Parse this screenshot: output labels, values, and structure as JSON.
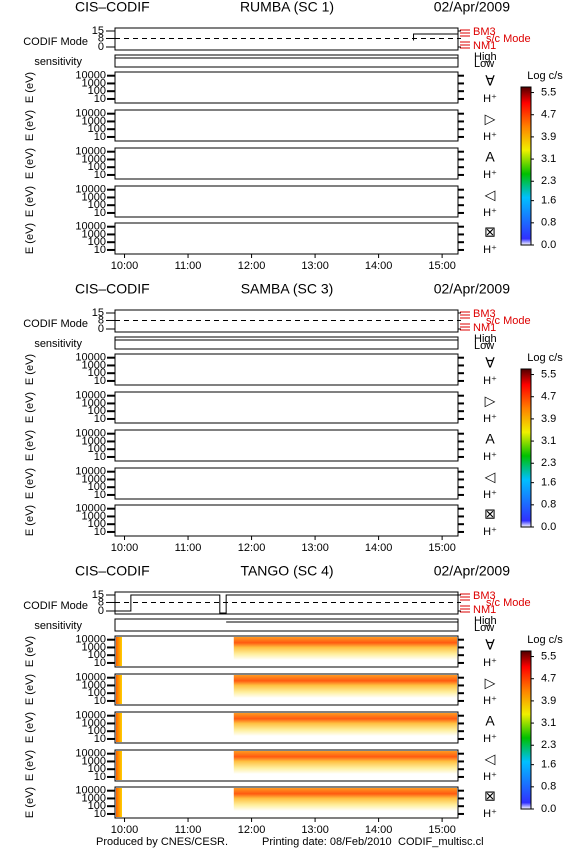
{
  "chart_data": [
    {
      "type": "spectrogram",
      "instrument": "CIS–CODIF",
      "title": "RUMBA (SC 1)",
      "date": "02/Apr/2009",
      "mode_label": "CODIF Mode",
      "mode_ticks": [
        15,
        8,
        0
      ],
      "mode_levels": [
        "BM3",
        "NM1"
      ],
      "mode_axis_label": "s/c Mode",
      "sensitivity_label": "sensitivity",
      "sensitivity_levels": [
        "High",
        "Low"
      ],
      "ylabel": "E (eV)",
      "ylim": [
        3,
        30000
      ],
      "yticks": [
        10000,
        1000,
        100,
        10
      ],
      "log_scale": true,
      "species": [
        {
          "symbol": "∀",
          "ion": "H⁺"
        },
        {
          "symbol": "▷",
          "ion": "H⁺"
        },
        {
          "symbol": "A",
          "ion": "H⁺"
        },
        {
          "symbol": "◁",
          "ion": "H⁺"
        },
        {
          "symbol": "⊠",
          "ion": "H⁺"
        }
      ],
      "colorbar": {
        "title": "Log c/s",
        "lim": [
          0,
          5.7
        ],
        "ticks": [
          5.5,
          4.7,
          3.9,
          3.1,
          2.3,
          1.6,
          {
            "value": 0.8,
            "label": "0.8"
          },
          {
            "value": 0,
            "label": "0.0"
          }
        ]
      },
      "xlim": [
        9.85,
        15.25
      ],
      "xticks": [
        {
          "value": 10,
          "label": "10:00"
        },
        {
          "value": 11,
          "label": "11:00"
        },
        {
          "value": 12,
          "label": "12:00"
        },
        {
          "value": 13,
          "label": "13:00"
        },
        {
          "value": 14,
          "label": "14:00"
        },
        {
          "value": 15,
          "label": "15:00"
        }
      ]
    },
    {
      "type": "spectrogram",
      "instrument": "CIS–CODIF",
      "title": "SAMBA (SC 3)",
      "date": "02/Apr/2009",
      "mode_label": "CODIF Mode",
      "mode_ticks": [
        15,
        8,
        0
      ],
      "mode_levels": [
        "BM3",
        "NM1"
      ],
      "mode_axis_label": "s/c Mode",
      "sensitivity_label": "sensitivity",
      "sensitivity_levels": [
        "High",
        "Low"
      ],
      "ylabel": "E (eV)",
      "ylim": [
        3,
        30000
      ],
      "yticks": [
        10000,
        1000,
        100,
        10
      ],
      "log_scale": true,
      "species": [
        {
          "symbol": "∀",
          "ion": "H⁺"
        },
        {
          "symbol": "▷",
          "ion": "H⁺"
        },
        {
          "symbol": "A",
          "ion": "H⁺"
        },
        {
          "symbol": "◁",
          "ion": "H⁺"
        },
        {
          "symbol": "⊠",
          "ion": "H⁺"
        }
      ],
      "colorbar": {
        "title": "Log c/s",
        "lim": [
          0,
          5.7
        ],
        "ticks": [
          5.5,
          4.7,
          3.9,
          3.1,
          2.3,
          1.6,
          {
            "value": 0.8,
            "label": "0.8"
          },
          {
            "value": 0,
            "label": "0.0"
          }
        ]
      },
      "xlim": [
        9.85,
        15.25
      ],
      "xticks": [
        {
          "value": 10,
          "label": "10:00"
        },
        {
          "value": 11,
          "label": "11:00"
        },
        {
          "value": 12,
          "label": "12:00"
        },
        {
          "value": 13,
          "label": "13:00"
        },
        {
          "value": 14,
          "label": "14:00"
        },
        {
          "value": 15,
          "label": "15:00"
        }
      ]
    },
    {
      "type": "spectrogram",
      "instrument": "CIS–CODIF",
      "title": "TANGO (SC 4)",
      "date": "02/Apr/2009",
      "mode_label": "CODIF Mode",
      "mode_ticks": [
        15,
        8,
        0
      ],
      "mode_levels": [
        "BM3",
        "NM1"
      ],
      "mode_axis_label": "s/c Mode",
      "sensitivity_label": "sensitivity",
      "sensitivity_levels": [
        "High",
        "Low"
      ],
      "ylabel": "E (eV)",
      "ylim": [
        3,
        30000
      ],
      "yticks": [
        10000,
        1000,
        100,
        10
      ],
      "log_scale": true,
      "species": [
        {
          "symbol": "∀",
          "ion": "H⁺"
        },
        {
          "symbol": "▷",
          "ion": "H⁺"
        },
        {
          "symbol": "A",
          "ion": "H⁺"
        },
        {
          "symbol": "◁",
          "ion": "H⁺"
        },
        {
          "symbol": "⊠",
          "ion": "H⁺"
        }
      ],
      "colorbar": {
        "title": "Log c/s",
        "lim": [
          0,
          5.7
        ],
        "ticks": [
          5.5,
          4.7,
          3.9,
          3.1,
          2.3,
          1.6,
          {
            "value": 0.8,
            "label": "0.8"
          },
          {
            "value": 0,
            "label": "0.0"
          }
        ]
      },
      "xlim": [
        9.85,
        15.25
      ],
      "xticks": [
        {
          "value": 10,
          "label": "10:00"
        },
        {
          "value": 11,
          "label": "11:00"
        },
        {
          "value": 12,
          "label": "12:00"
        },
        {
          "value": 13,
          "label": "13:00"
        },
        {
          "value": 14,
          "label": "14:00"
        },
        {
          "value": 15,
          "label": "15:00"
        }
      ]
    }
  ],
  "footer": {
    "producer": "Produced by CNES/CESR.",
    "printing_date": "Printing date: 08/Feb/2010",
    "file": "CODIF_multisc.cl"
  }
}
